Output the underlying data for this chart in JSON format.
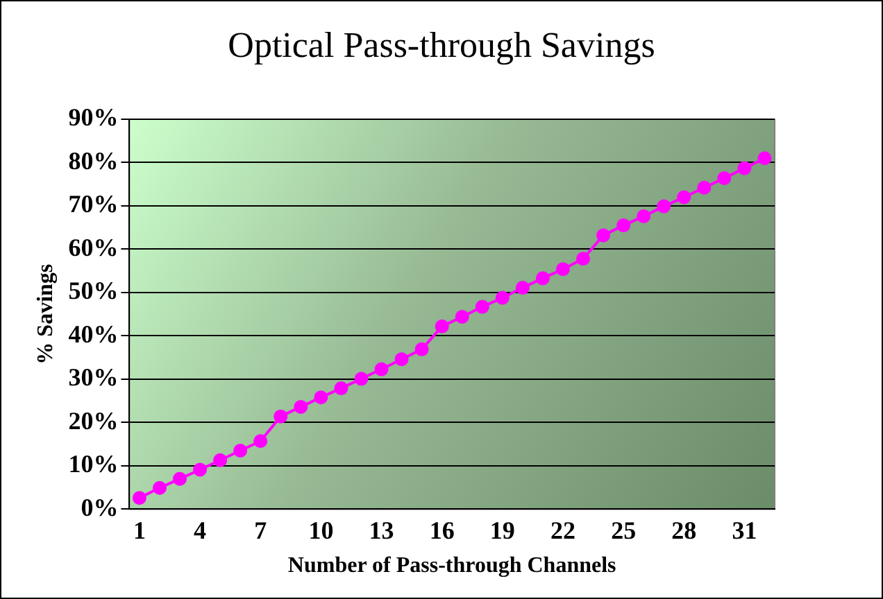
{
  "chart_data": {
    "type": "line",
    "title": "Optical Pass-through Savings",
    "xlabel": "Number of Pass-through Channels",
    "ylabel": "% Savings",
    "categories": [
      "1",
      null,
      null,
      "4",
      null,
      null,
      "7",
      null,
      null,
      "10",
      null,
      null,
      "13",
      null,
      null,
      "16",
      null,
      null,
      "19",
      null,
      null,
      "22",
      null,
      null,
      "25",
      null,
      null,
      "28",
      null,
      null,
      "31",
      null
    ],
    "series": [
      {
        "color": "#ff00ff",
        "values": [
          2.6,
          4.9,
          7.0,
          9.1,
          11.3,
          13.5,
          15.7,
          21.4,
          23.6,
          25.8,
          27.9,
          30.1,
          32.3,
          34.6,
          36.9,
          42.2,
          44.4,
          46.7,
          48.8,
          51.1,
          53.3,
          55.4,
          57.8,
          63.2,
          65.5,
          67.6,
          69.9,
          72.0,
          74.2,
          76.4,
          78.7,
          81.0
        ]
      }
    ],
    "ylim": [
      0,
      90
    ],
    "yticks": [
      {
        "value": 0,
        "label": "0%"
      },
      {
        "value": 10,
        "label": "10%"
      },
      {
        "value": 20,
        "label": "20%"
      },
      {
        "value": 30,
        "label": "30%"
      },
      {
        "value": 40,
        "label": "40%"
      },
      {
        "value": 50,
        "label": "50%"
      },
      {
        "value": 60,
        "label": "60%"
      },
      {
        "value": 70,
        "label": "70%"
      },
      {
        "value": 80,
        "label": "80%"
      },
      {
        "value": 90,
        "label": "90%"
      }
    ],
    "grid": "y",
    "legend": false,
    "marker": "circle",
    "line_style": "solid"
  }
}
